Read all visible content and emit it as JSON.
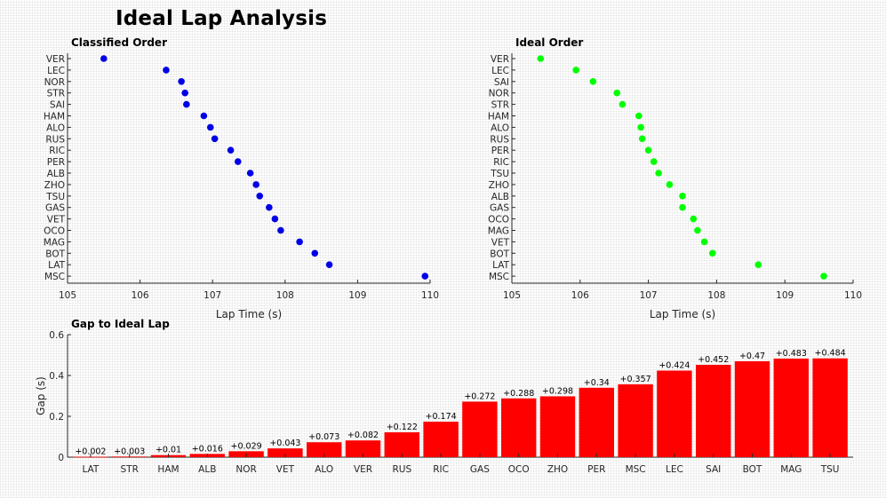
{
  "page_title": "Ideal Lap Analysis",
  "colors": {
    "classified_dots": "#0000e6",
    "ideal_dots": "#00ff00",
    "bars": "#ff0000",
    "axis": "#262626"
  },
  "chart_data": [
    {
      "type": "scatter",
      "title": "Classified Order",
      "xlabel": "Lap Time (s)",
      "ylabel": "",
      "xlim": [
        105,
        110
      ],
      "xticks": [
        105,
        106,
        107,
        108,
        109,
        110
      ],
      "categories": [
        "VER",
        "LEC",
        "NOR",
        "STR",
        "SAI",
        "HAM",
        "ALO",
        "RUS",
        "RIC",
        "PER",
        "ALB",
        "ZHO",
        "TSU",
        "GAS",
        "VET",
        "OCO",
        "MAG",
        "BOT",
        "LAT",
        "MSC"
      ],
      "values": [
        105.5,
        106.36,
        106.57,
        106.62,
        106.64,
        106.88,
        106.97,
        107.03,
        107.25,
        107.35,
        107.52,
        107.6,
        107.65,
        107.78,
        107.86,
        107.94,
        108.2,
        108.41,
        108.61,
        109.93
      ]
    },
    {
      "type": "scatter",
      "title": "Ideal Order",
      "xlabel": "Lap Time (s)",
      "ylabel": "",
      "xlim": [
        105,
        110
      ],
      "xticks": [
        105,
        106,
        107,
        108,
        109,
        110
      ],
      "categories": [
        "VER",
        "LEC",
        "SAI",
        "NOR",
        "STR",
        "HAM",
        "ALO",
        "RUS",
        "PER",
        "RIC",
        "TSU",
        "ZHO",
        "ALB",
        "GAS",
        "OCO",
        "MAG",
        "VET",
        "BOT",
        "LAT",
        "MSC"
      ],
      "values": [
        105.42,
        105.94,
        106.19,
        106.54,
        106.62,
        106.86,
        106.89,
        106.91,
        107.0,
        107.08,
        107.15,
        107.31,
        107.5,
        107.5,
        107.66,
        107.72,
        107.82,
        107.94,
        108.61,
        109.57
      ]
    },
    {
      "type": "bar",
      "title": "Gap to Ideal Lap",
      "xlabel": "",
      "ylabel": "Gap (s)",
      "ylim": [
        0,
        0.6
      ],
      "yticks": [
        0,
        0.2,
        0.4,
        0.6
      ],
      "categories": [
        "LAT",
        "STR",
        "HAM",
        "ALB",
        "NOR",
        "VET",
        "ALO",
        "VER",
        "RUS",
        "RIC",
        "GAS",
        "OCO",
        "ZHO",
        "PER",
        "MSC",
        "LEC",
        "SAI",
        "BOT",
        "MAG",
        "TSU"
      ],
      "values": [
        0.002,
        0.003,
        0.01,
        0.016,
        0.029,
        0.043,
        0.073,
        0.082,
        0.122,
        0.174,
        0.272,
        0.288,
        0.298,
        0.34,
        0.357,
        0.424,
        0.452,
        0.47,
        0.483,
        0.484
      ],
      "labels": [
        "+0.002",
        "+0.003",
        "+0.01",
        "+0.016",
        "+0.029",
        "+0.043",
        "+0.073",
        "+0.082",
        "+0.122",
        "+0.174",
        "+0.272",
        "+0.288",
        "+0.298",
        "+0.34",
        "+0.357",
        "+0.424",
        "+0.452",
        "+0.47",
        "+0.483",
        "+0.484"
      ]
    }
  ]
}
